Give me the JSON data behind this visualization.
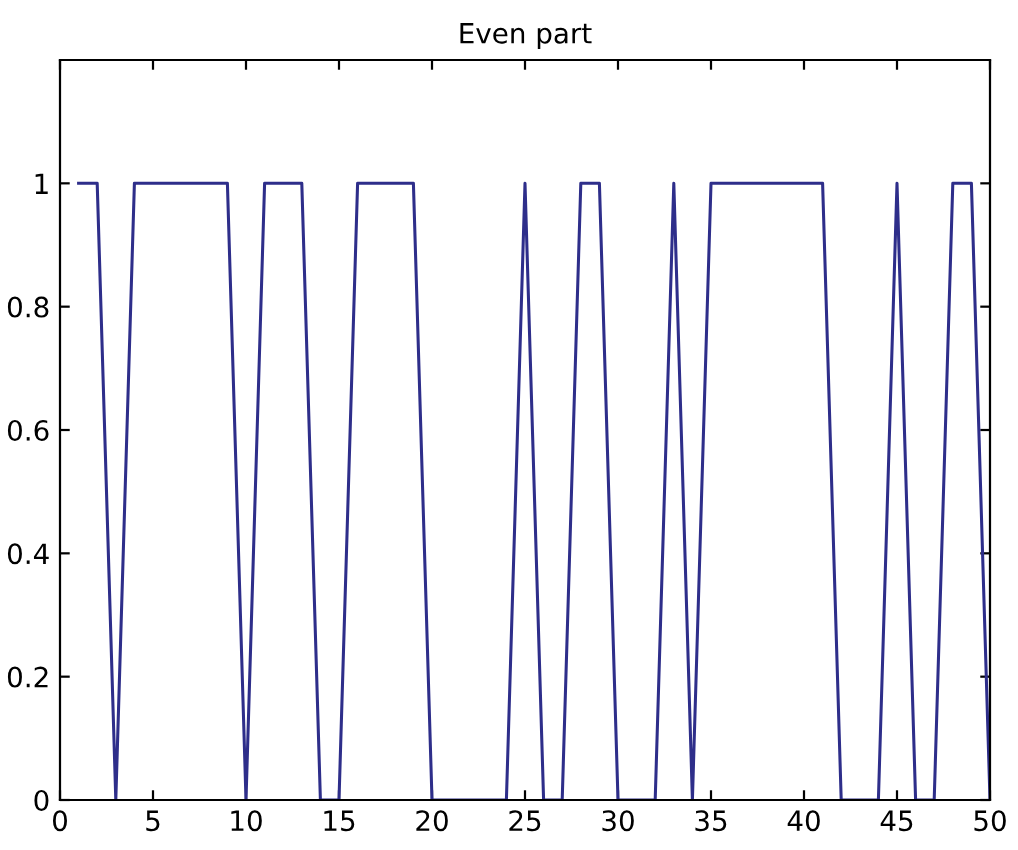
{
  "chart_data": {
    "type": "line",
    "title": "Even part",
    "x": [
      1,
      2,
      3,
      4,
      5,
      6,
      7,
      8,
      9,
      10,
      11,
      12,
      13,
      14,
      15,
      16,
      17,
      18,
      19,
      20,
      21,
      22,
      23,
      24,
      25,
      26,
      27,
      28,
      29,
      30,
      31,
      32,
      33,
      34,
      35,
      36,
      37,
      38,
      39,
      40,
      41,
      42,
      43,
      44,
      45,
      46,
      47,
      48,
      49,
      50
    ],
    "series": [
      {
        "color": "#2e2e8a",
        "values": [
          1,
          1,
          0,
          1,
          1,
          1,
          1,
          1,
          1,
          0,
          1,
          1,
          1,
          0,
          0,
          1,
          1,
          1,
          1,
          0,
          0,
          0,
          0,
          0,
          1,
          0,
          0,
          1,
          1,
          0,
          0,
          0,
          1,
          0,
          1,
          1,
          1,
          1,
          1,
          1,
          1,
          0,
          0,
          0,
          1,
          0,
          0,
          1,
          1,
          0
        ]
      }
    ],
    "xlim": [
      0,
      50
    ],
    "xticks": [
      0,
      5,
      10,
      15,
      20,
      25,
      30,
      35,
      40,
      45,
      50
    ],
    "ylim": [
      0,
      1.2
    ],
    "yticks": [
      0,
      0.2,
      0.4,
      0.6,
      0.8,
      1
    ],
    "grid": false,
    "legend": false,
    "marker": "none",
    "line_style": "solid"
  }
}
